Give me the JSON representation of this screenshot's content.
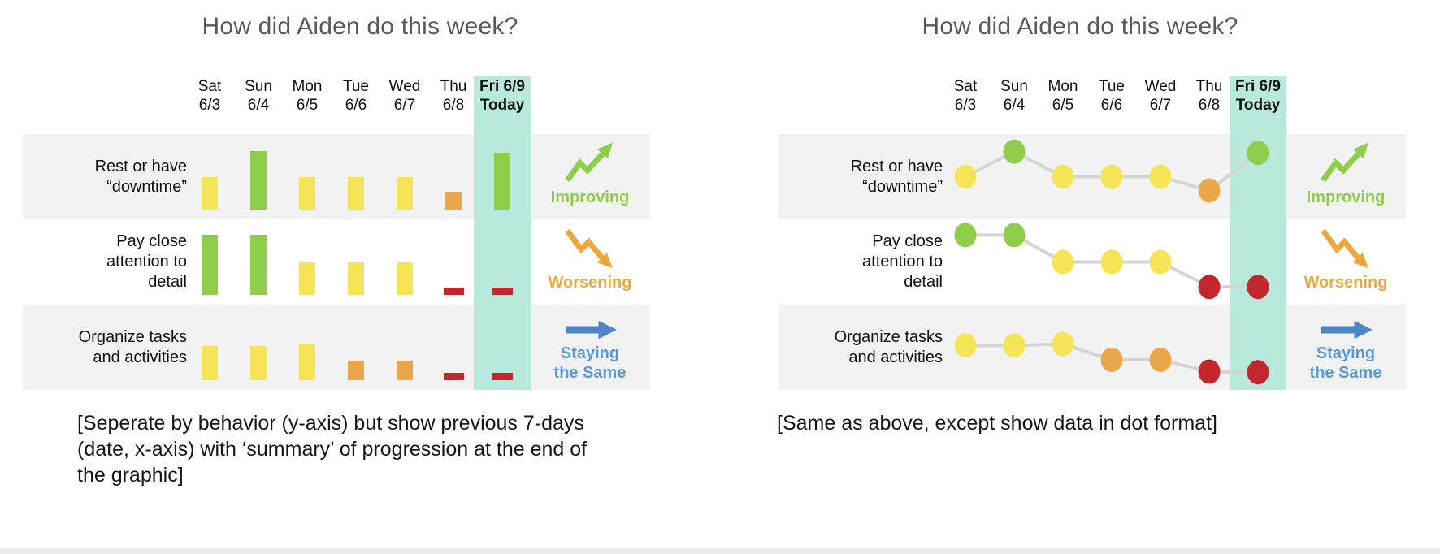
{
  "colors": {
    "title_text": "#595959",
    "row_band": "#F2F2F2",
    "today_highlight": "#B9E9DC",
    "connector_line": "#D4D4D4",
    "caption_text": "#161616",
    "levels": {
      "green": "#8FCD4A",
      "yellow": "#F5E455",
      "orange": "#E9A64A",
      "red": "#C1272D"
    },
    "trend": {
      "improving": "#8DCE46",
      "worsening": "#EAA83F",
      "staying_same_arrow": "#4E86C8",
      "staying_same_text": "#5B9BD5"
    }
  },
  "chart_data": [
    {
      "type": "bar",
      "title": "How did Aiden do this week?",
      "caption": "[Seperate by behavior (y-axis) but show previous 7-days\n(date, x-axis) with ‘summary’ of progression at the end of\nthe graphic]",
      "x_note": "previous 7 days, today highlighted",
      "ylim": [
        0,
        100
      ],
      "days": [
        {
          "dow": "Sat",
          "date": "6/3",
          "today": false
        },
        {
          "dow": "Sun",
          "date": "6/4",
          "today": false
        },
        {
          "dow": "Mon",
          "date": "6/5",
          "today": false
        },
        {
          "dow": "Tue",
          "date": "6/6",
          "today": false
        },
        {
          "dow": "Wed",
          "date": "6/7",
          "today": false
        },
        {
          "dow": "Thu",
          "date": "6/8",
          "today": false
        },
        {
          "dow": "Fri 6/9",
          "date": "Today",
          "today": true
        }
      ],
      "rows": [
        {
          "label": "Rest or have\n“downtime”",
          "trend": "improving",
          "trend_label": "Improving",
          "points": [
            {
              "level": "yellow",
              "value": 50
            },
            {
              "level": "green",
              "value": 90
            },
            {
              "level": "yellow",
              "value": 50
            },
            {
              "level": "yellow",
              "value": 50
            },
            {
              "level": "yellow",
              "value": 50
            },
            {
              "level": "orange",
              "value": 28
            },
            {
              "level": "green",
              "value": 88
            }
          ]
        },
        {
          "label": "Pay close\nattention to\ndetail",
          "trend": "worsening",
          "trend_label": "Worsening",
          "points": [
            {
              "level": "green",
              "value": 93
            },
            {
              "level": "green",
              "value": 93
            },
            {
              "level": "yellow",
              "value": 50
            },
            {
              "level": "yellow",
              "value": 50
            },
            {
              "level": "yellow",
              "value": 50
            },
            {
              "level": "red",
              "value": 10
            },
            {
              "level": "red",
              "value": 10
            }
          ]
        },
        {
          "label": "Organize tasks\nand activities",
          "trend": "staying-the-same",
          "trend_label": "Staying\nthe Same",
          "points": [
            {
              "level": "yellow",
              "value": 53
            },
            {
              "level": "yellow",
              "value": 53
            },
            {
              "level": "yellow",
              "value": 55
            },
            {
              "level": "orange",
              "value": 30
            },
            {
              "level": "orange",
              "value": 30
            },
            {
              "level": "red",
              "value": 11
            },
            {
              "level": "red",
              "value": 10
            }
          ]
        }
      ]
    },
    {
      "type": "line-dot",
      "title": "How did Aiden do this week?",
      "caption": "[Same as above, except show data in dot format]",
      "x_note": "previous 7 days, today highlighted",
      "ylim": [
        0,
        100
      ],
      "days": [
        {
          "dow": "Sat",
          "date": "6/3",
          "today": false
        },
        {
          "dow": "Sun",
          "date": "6/4",
          "today": false
        },
        {
          "dow": "Mon",
          "date": "6/5",
          "today": false
        },
        {
          "dow": "Tue",
          "date": "6/6",
          "today": false
        },
        {
          "dow": "Wed",
          "date": "6/7",
          "today": false
        },
        {
          "dow": "Thu",
          "date": "6/8",
          "today": false
        },
        {
          "dow": "Fri 6/9",
          "date": "Today",
          "today": true
        }
      ],
      "rows": [
        {
          "label": "Rest or have\n“downtime”",
          "trend": "improving",
          "trend_label": "Improving",
          "points": [
            {
              "level": "yellow",
              "value": 50
            },
            {
              "level": "green",
              "value": 90
            },
            {
              "level": "yellow",
              "value": 50
            },
            {
              "level": "yellow",
              "value": 50
            },
            {
              "level": "yellow",
              "value": 50
            },
            {
              "level": "orange",
              "value": 28
            },
            {
              "level": "green",
              "value": 88
            }
          ]
        },
        {
          "label": "Pay close\nattention to\ndetail",
          "trend": "worsening",
          "trend_label": "Worsening",
          "points": [
            {
              "level": "green",
              "value": 93
            },
            {
              "level": "green",
              "value": 93
            },
            {
              "level": "yellow",
              "value": 50
            },
            {
              "level": "yellow",
              "value": 50
            },
            {
              "level": "yellow",
              "value": 50
            },
            {
              "level": "red",
              "value": 10
            },
            {
              "level": "red",
              "value": 10
            }
          ]
        },
        {
          "label": "Organize tasks\nand activities",
          "trend": "staying-the-same",
          "trend_label": "Staying\nthe Same",
          "points": [
            {
              "level": "yellow",
              "value": 53
            },
            {
              "level": "yellow",
              "value": 53
            },
            {
              "level": "yellow",
              "value": 55
            },
            {
              "level": "orange",
              "value": 30
            },
            {
              "level": "orange",
              "value": 30
            },
            {
              "level": "red",
              "value": 11
            },
            {
              "level": "red",
              "value": 10
            }
          ]
        }
      ]
    }
  ]
}
